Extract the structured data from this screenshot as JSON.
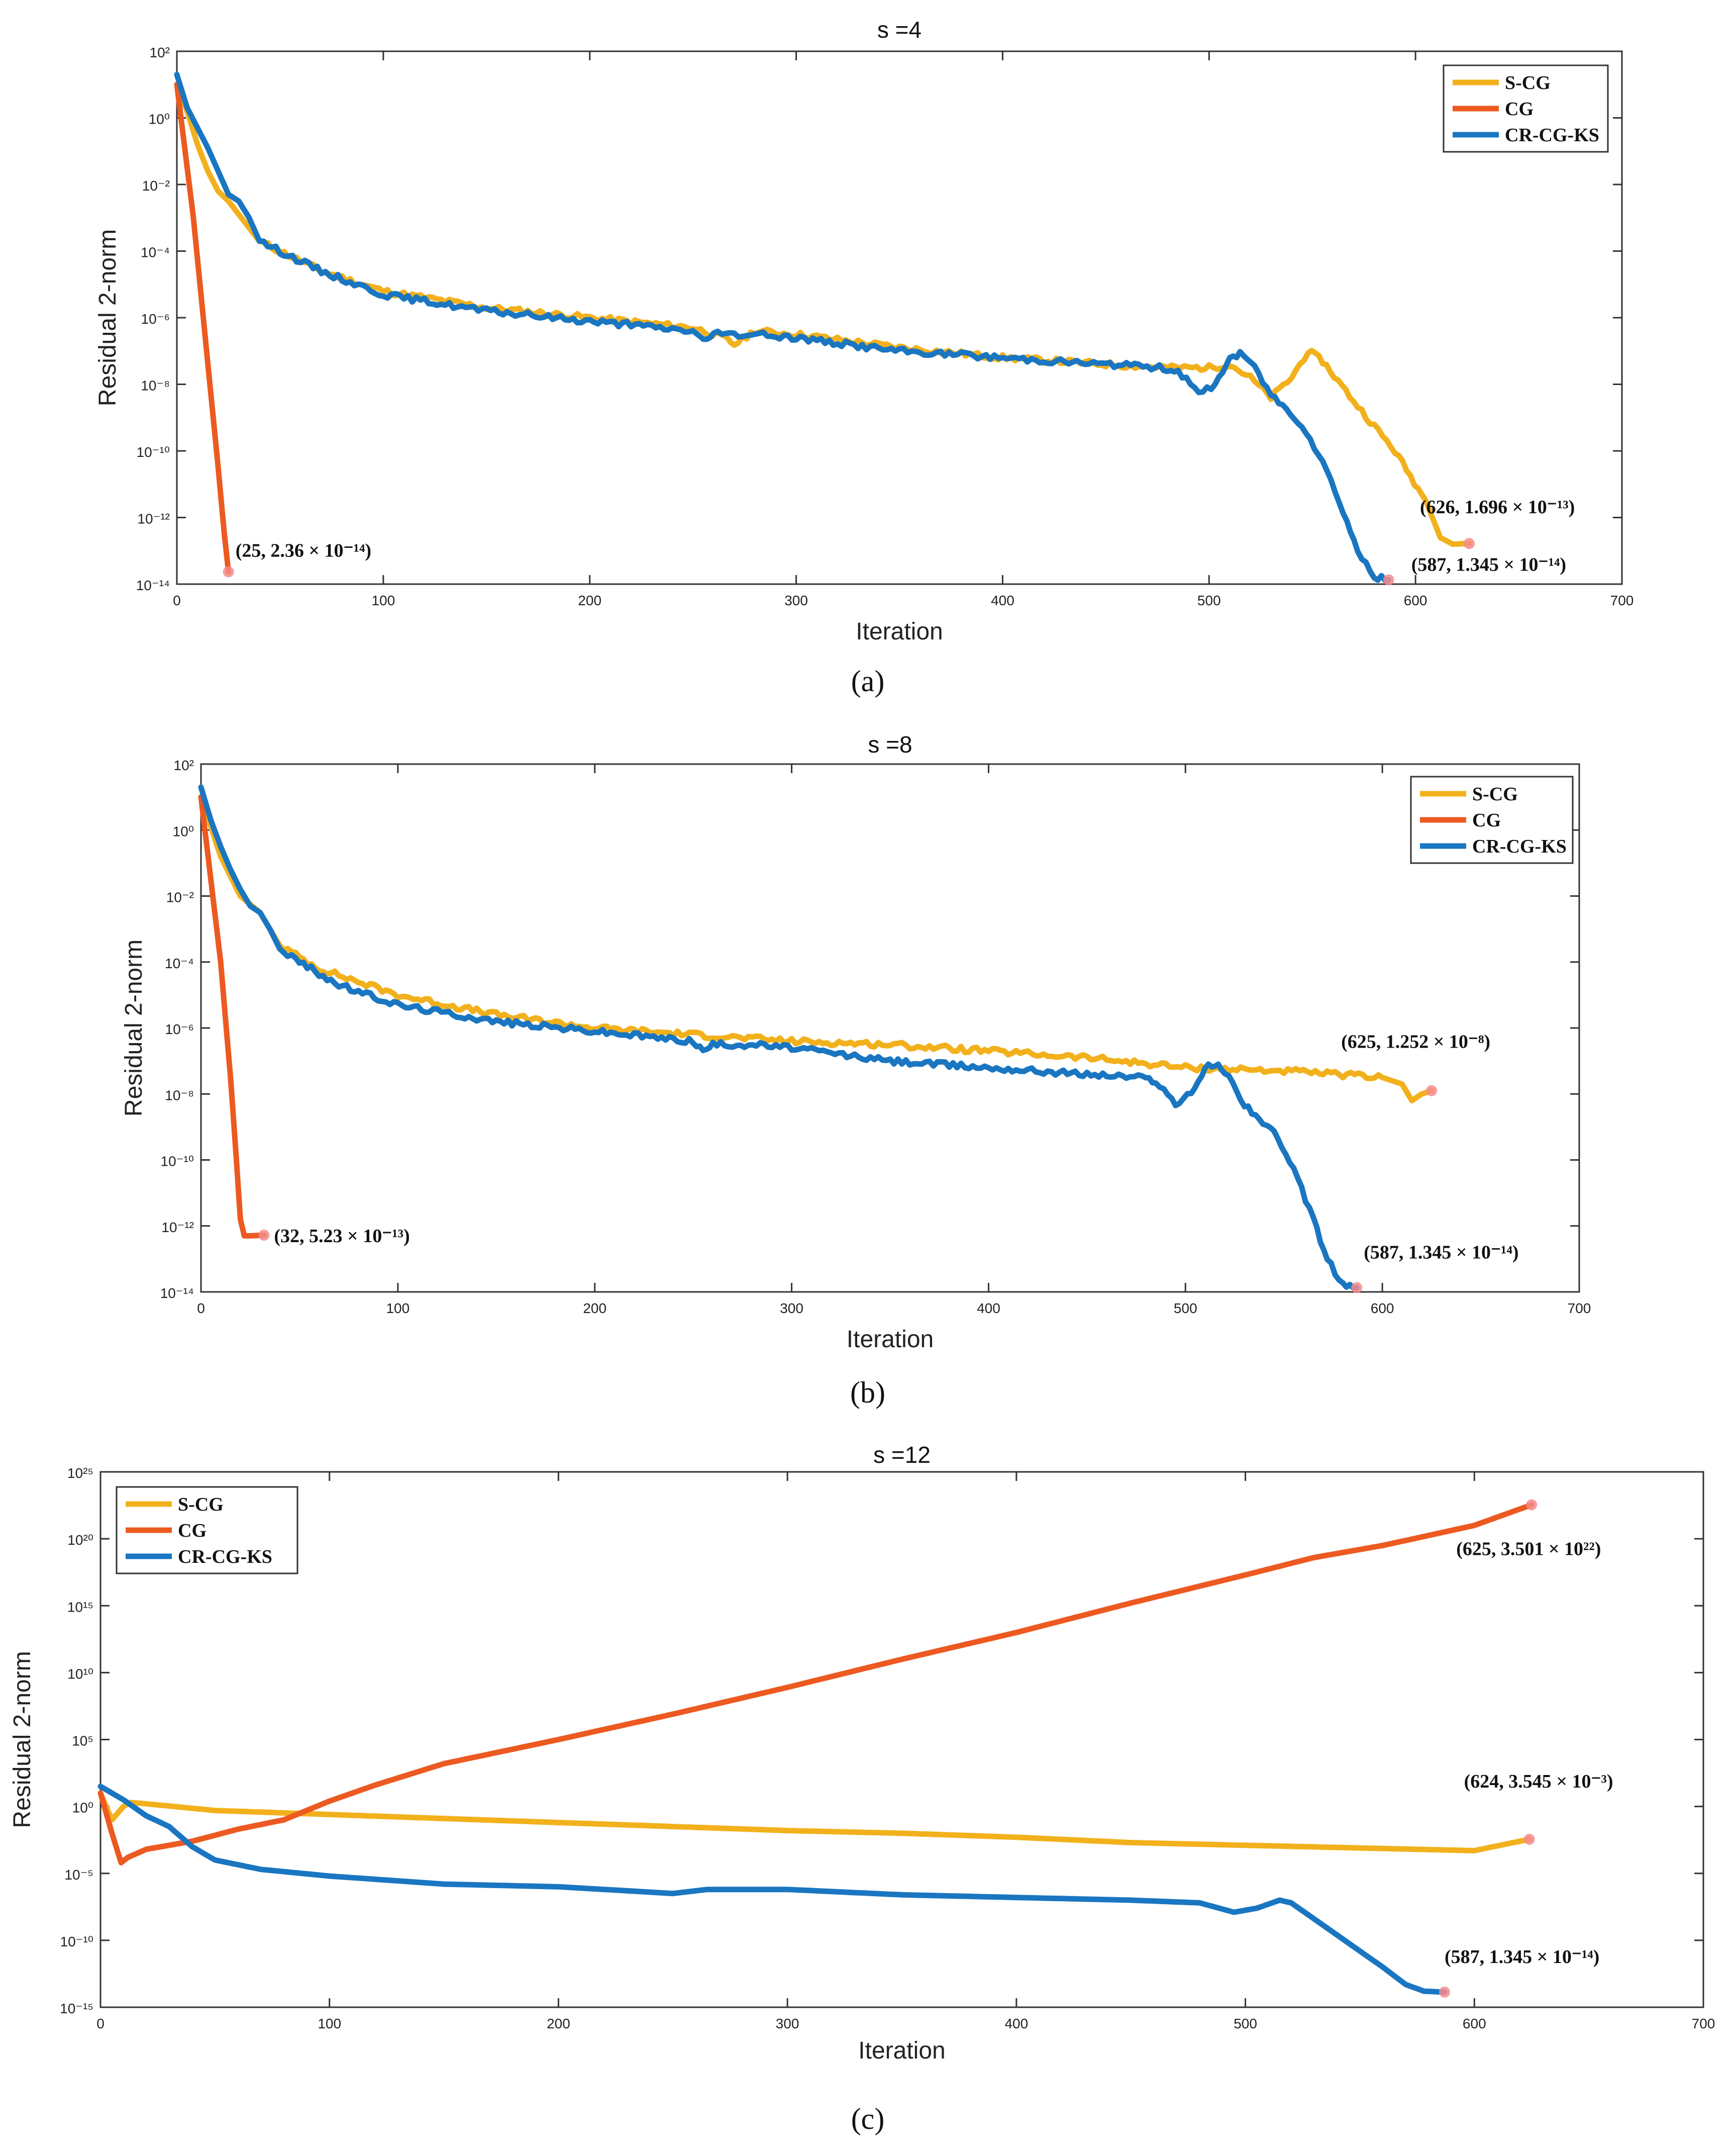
{
  "chart_data": [
    {
      "type": "line",
      "panel_label": "(a)",
      "label_letter": "a",
      "title": "s =4",
      "xlabel": "Iteration",
      "ylabel": "Residual 2-norm",
      "yscale": "log",
      "xlim": [
        0,
        700
      ],
      "ylim_exp": [
        -14,
        2
      ],
      "xticks": [
        0,
        100,
        200,
        300,
        400,
        500,
        600,
        700
      ],
      "yticks_exp": [
        2,
        0,
        -2,
        -4,
        -6,
        -8,
        -10,
        -12,
        -14
      ],
      "legend_position": "top-right",
      "series": [
        {
          "name": "S-CG",
          "color": "#f2b11c",
          "points": [
            [
              0,
              1.0
            ],
            [
              5,
              0.2
            ],
            [
              10,
              -0.8
            ],
            [
              15,
              -1.6
            ],
            [
              20,
              -2.2
            ],
            [
              25,
              -2.5
            ],
            [
              30,
              -2.9
            ],
            [
              35,
              -3.3
            ],
            [
              40,
              -3.7
            ],
            [
              50,
              -4.0
            ],
            [
              70,
              -4.6
            ],
            [
              100,
              -5.2
            ],
            [
              150,
              -5.7
            ],
            [
              200,
              -6.0
            ],
            [
              250,
              -6.3
            ],
            [
              265,
              -6.6
            ],
            [
              270,
              -6.8
            ],
            [
              280,
              -6.4
            ],
            [
              300,
              -6.5
            ],
            [
              350,
              -6.9
            ],
            [
              400,
              -7.2
            ],
            [
              450,
              -7.4
            ],
            [
              480,
              -7.5
            ],
            [
              500,
              -7.5
            ],
            [
              510,
              -7.4
            ],
            [
              520,
              -7.8
            ],
            [
              530,
              -8.4
            ],
            [
              540,
              -7.8
            ],
            [
              548,
              -7.0
            ],
            [
              555,
              -7.3
            ],
            [
              570,
              -8.5
            ],
            [
              590,
              -10.0
            ],
            [
              605,
              -11.5
            ],
            [
              612,
              -12.6
            ],
            [
              618,
              -12.8
            ],
            [
              626,
              -12.78
            ]
          ]
        },
        {
          "name": "CG",
          "color": "#ec5a21",
          "points": [
            [
              0,
              1.0
            ],
            [
              4,
              -1.0
            ],
            [
              8,
              -3.0
            ],
            [
              12,
              -5.5
            ],
            [
              16,
              -8.0
            ],
            [
              20,
              -10.5
            ],
            [
              23,
              -12.5
            ],
            [
              25,
              -13.63
            ]
          ]
        },
        {
          "name": "CR-CG-KS",
          "color": "#1a76c1",
          "points": [
            [
              0,
              1.3
            ],
            [
              5,
              0.3
            ],
            [
              10,
              -0.3
            ],
            [
              15,
              -0.9
            ],
            [
              20,
              -1.6
            ],
            [
              25,
              -2.3
            ],
            [
              30,
              -2.5
            ],
            [
              35,
              -3.0
            ],
            [
              40,
              -3.7
            ],
            [
              50,
              -4.0
            ],
            [
              70,
              -4.6
            ],
            [
              100,
              -5.3
            ],
            [
              150,
              -5.8
            ],
            [
              200,
              -6.1
            ],
            [
              250,
              -6.4
            ],
            [
              255,
              -6.7
            ],
            [
              260,
              -6.5
            ],
            [
              280,
              -6.5
            ],
            [
              300,
              -6.6
            ],
            [
              350,
              -7.0
            ],
            [
              400,
              -7.2
            ],
            [
              450,
              -7.4
            ],
            [
              478,
              -7.5
            ],
            [
              485,
              -7.6
            ],
            [
              495,
              -8.3
            ],
            [
              503,
              -8.0
            ],
            [
              510,
              -7.2
            ],
            [
              515,
              -7.1
            ],
            [
              520,
              -7.3
            ],
            [
              530,
              -8.3
            ],
            [
              545,
              -9.2
            ],
            [
              555,
              -10.3
            ],
            [
              565,
              -11.8
            ],
            [
              572,
              -13.0
            ],
            [
              580,
              -13.8
            ],
            [
              587,
              -13.87
            ]
          ]
        }
      ],
      "annotations": [
        {
          "text": "(25, 2.36 × 10⁻¹⁴)",
          "x": 25,
          "y_exp": -13.63,
          "dx": 14,
          "dy": -30
        },
        {
          "text": "(626, 1.696 × 10⁻¹³)",
          "x": 626,
          "y_exp": -12.78,
          "dx": -98,
          "dy": -60
        },
        {
          "text": "(587, 1.345 × 10⁻¹⁴)",
          "x": 587,
          "y_exp": -13.87,
          "dx": 45,
          "dy": -18
        }
      ]
    },
    {
      "type": "line",
      "panel_label": "(b)",
      "label_letter": "b",
      "title": "s =8",
      "xlabel": "Iteration",
      "ylabel": "Residual 2-norm",
      "yscale": "log",
      "xlim": [
        0,
        700
      ],
      "ylim_exp": [
        -14,
        2
      ],
      "xticks": [
        0,
        100,
        200,
        300,
        400,
        500,
        600,
        700
      ],
      "yticks_exp": [
        2,
        0,
        -2,
        -4,
        -6,
        -8,
        -10,
        -12,
        -14
      ],
      "legend_position": "top-right",
      "series": [
        {
          "name": "S-CG",
          "color": "#f2b11c",
          "points": [
            [
              0,
              1.0
            ],
            [
              10,
              -0.8
            ],
            [
              20,
              -2.0
            ],
            [
              30,
              -2.5
            ],
            [
              40,
              -3.5
            ],
            [
              60,
              -4.2
            ],
            [
              80,
              -4.6
            ],
            [
              100,
              -5.0
            ],
            [
              150,
              -5.6
            ],
            [
              200,
              -6.0
            ],
            [
              250,
              -6.2
            ],
            [
              300,
              -6.4
            ],
            [
              350,
              -6.5
            ],
            [
              400,
              -6.7
            ],
            [
              450,
              -6.9
            ],
            [
              500,
              -7.2
            ],
            [
              550,
              -7.3
            ],
            [
              600,
              -7.5
            ],
            [
              610,
              -7.7
            ],
            [
              615,
              -8.2
            ],
            [
              620,
              -8.0
            ],
            [
              625,
              -7.9
            ]
          ]
        },
        {
          "name": "CG",
          "color": "#ec5a21",
          "points": [
            [
              0,
              1.0
            ],
            [
              5,
              -1.5
            ],
            [
              10,
              -4.0
            ],
            [
              15,
              -7.5
            ],
            [
              18,
              -10.0
            ],
            [
              20,
              -11.8
            ],
            [
              22,
              -12.3
            ],
            [
              25,
              -12.3
            ],
            [
              32,
              -12.28
            ]
          ]
        },
        {
          "name": "CR-CG-KS",
          "color": "#1a76c1",
          "points": [
            [
              0,
              1.3
            ],
            [
              5,
              0.3
            ],
            [
              10,
              -0.5
            ],
            [
              15,
              -1.2
            ],
            [
              20,
              -1.8
            ],
            [
              25,
              -2.3
            ],
            [
              30,
              -2.5
            ],
            [
              35,
              -3.0
            ],
            [
              40,
              -3.6
            ],
            [
              50,
              -4.0
            ],
            [
              70,
              -4.7
            ],
            [
              100,
              -5.3
            ],
            [
              150,
              -5.8
            ],
            [
              200,
              -6.1
            ],
            [
              250,
              -6.4
            ],
            [
              255,
              -6.7
            ],
            [
              260,
              -6.5
            ],
            [
              280,
              -6.5
            ],
            [
              300,
              -6.6
            ],
            [
              350,
              -7.0
            ],
            [
              400,
              -7.2
            ],
            [
              450,
              -7.4
            ],
            [
              478,
              -7.5
            ],
            [
              485,
              -7.6
            ],
            [
              495,
              -8.3
            ],
            [
              503,
              -8.0
            ],
            [
              510,
              -7.2
            ],
            [
              515,
              -7.1
            ],
            [
              520,
              -7.3
            ],
            [
              530,
              -8.3
            ],
            [
              545,
              -9.2
            ],
            [
              555,
              -10.3
            ],
            [
              565,
              -11.8
            ],
            [
              572,
              -13.0
            ],
            [
              580,
              -13.8
            ],
            [
              587,
              -13.87
            ]
          ]
        }
      ],
      "annotations": [
        {
          "text": "(32, 5.23 × 10⁻¹³)",
          "x": 32,
          "y_exp": -12.28,
          "dx": 20,
          "dy": 14
        },
        {
          "text": "(625, 1.252 × 10⁻⁸)",
          "x": 625,
          "y_exp": -7.9,
          "dx": -180,
          "dy": -85
        },
        {
          "text": "(587, 1.345 × 10⁻¹⁴)",
          "x": 587,
          "y_exp": -13.87,
          "dx": 14,
          "dy": -58
        }
      ]
    },
    {
      "type": "line",
      "panel_label": "(c)",
      "label_letter": "c",
      "title": "s =12",
      "xlabel": "Iteration",
      "ylabel": "Residual 2-norm",
      "yscale": "log",
      "xlim": [
        0,
        700
      ],
      "ylim_exp": [
        -15,
        25
      ],
      "xticks": [
        0,
        100,
        200,
        300,
        400,
        500,
        600,
        700
      ],
      "yticks_exp": [
        25,
        20,
        15,
        10,
        5,
        0,
        -5,
        -10,
        -15
      ],
      "legend_position": "top-left",
      "series": [
        {
          "name": "S-CG",
          "color": "#f2b11c",
          "points": [
            [
              0,
              1.0
            ],
            [
              5,
              -1.0
            ],
            [
              10,
              0.0
            ],
            [
              13,
              0.3
            ],
            [
              20,
              0.2
            ],
            [
              50,
              -0.3
            ],
            [
              100,
              -0.6
            ],
            [
              150,
              -0.9
            ],
            [
              200,
              -1.2
            ],
            [
              250,
              -1.5
            ],
            [
              300,
              -1.8
            ],
            [
              350,
              -2.0
            ],
            [
              400,
              -2.3
            ],
            [
              450,
              -2.7
            ],
            [
              500,
              -2.9
            ],
            [
              550,
              -3.1
            ],
            [
              600,
              -3.3
            ],
            [
              624,
              -2.45
            ]
          ]
        },
        {
          "name": "CG",
          "color": "#ec5a21",
          "points": [
            [
              0,
              1.0
            ],
            [
              5,
              -2.0
            ],
            [
              9,
              -4.2
            ],
            [
              12,
              -3.8
            ],
            [
              20,
              -3.2
            ],
            [
              40,
              -2.6
            ],
            [
              60,
              -1.7
            ],
            [
              80,
              -1.0
            ],
            [
              100,
              0.4
            ],
            [
              120,
              1.6
            ],
            [
              150,
              3.2
            ],
            [
              200,
              5.0
            ],
            [
              250,
              6.9
            ],
            [
              300,
              8.9
            ],
            [
              350,
              11.0
            ],
            [
              400,
              13.0
            ],
            [
              450,
              15.2
            ],
            [
              500,
              17.3
            ],
            [
              530,
              18.6
            ],
            [
              560,
              19.5
            ],
            [
              600,
              21.0
            ],
            [
              625,
              22.54
            ]
          ]
        },
        {
          "name": "CR-CG-KS",
          "color": "#1a76c1",
          "points": [
            [
              0,
              1.5
            ],
            [
              10,
              0.5
            ],
            [
              20,
              -0.7
            ],
            [
              30,
              -1.5
            ],
            [
              40,
              -3.0
            ],
            [
              50,
              -4.0
            ],
            [
              70,
              -4.7
            ],
            [
              100,
              -5.2
            ],
            [
              150,
              -5.8
            ],
            [
              200,
              -6.0
            ],
            [
              250,
              -6.5
            ],
            [
              265,
              -6.2
            ],
            [
              300,
              -6.2
            ],
            [
              350,
              -6.6
            ],
            [
              400,
              -6.8
            ],
            [
              450,
              -7.0
            ],
            [
              480,
              -7.2
            ],
            [
              495,
              -7.9
            ],
            [
              505,
              -7.6
            ],
            [
              515,
              -7.0
            ],
            [
              520,
              -7.2
            ],
            [
              530,
              -8.4
            ],
            [
              545,
              -10.2
            ],
            [
              560,
              -12.0
            ],
            [
              570,
              -13.3
            ],
            [
              578,
              -13.8
            ],
            [
              587,
              -13.87
            ]
          ]
        }
      ],
      "annotations": [
        {
          "text": "(625, 3.501 × 10²²)",
          "x": 625,
          "y_exp": 22.54,
          "dx": -150,
          "dy": 100
        },
        {
          "text": "(624, 3.545 × 10⁻³)",
          "x": 624,
          "y_exp": -2.45,
          "dx": -130,
          "dy": -103
        },
        {
          "text": "(587, 1.345 × 10⁻¹⁴)",
          "x": 587,
          "y_exp": -13.87,
          "dx": 0,
          "dy": -58
        }
      ]
    }
  ]
}
